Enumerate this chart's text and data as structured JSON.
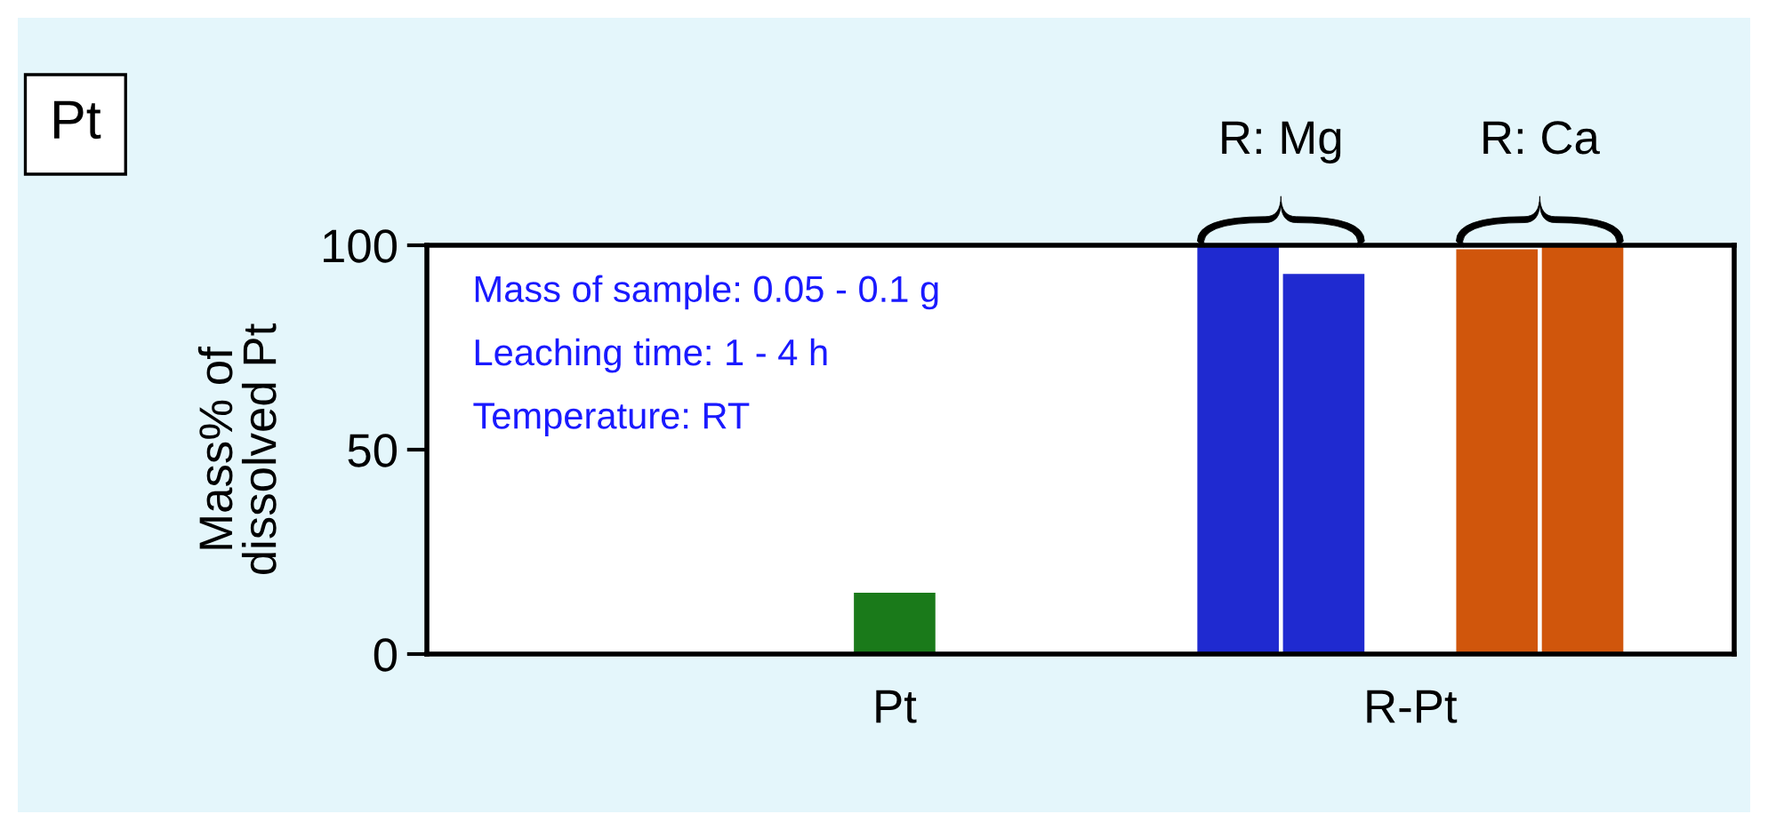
{
  "chart_data": {
    "type": "bar",
    "title": "Pt",
    "ylabel": "Mass% of\ndissolved Pt",
    "categories": [
      "Pt",
      "R-Pt"
    ],
    "series": [
      {
        "color": "#1a7a1a",
        "values": [
          15,
          null
        ]
      },
      {
        "color": "#1f2ad0",
        "values": [
          null,
          100
        ]
      },
      {
        "color": "#1f2ad0",
        "values": [
          null,
          93
        ]
      },
      {
        "color": "#d0560c",
        "values": [
          null,
          99
        ]
      },
      {
        "color": "#d0560c",
        "values": [
          null,
          100
        ]
      }
    ],
    "ylim": [
      0,
      100
    ],
    "yticks": [
      0,
      50,
      100
    ],
    "grid": false,
    "legend": false,
    "annotations": [
      "Mass of sample: 0.05 - 0.1 g",
      "Leaching time: 1 - 4 h",
      "Temperature: RT",
      "R: Mg",
      "R: Ca"
    ]
  }
}
